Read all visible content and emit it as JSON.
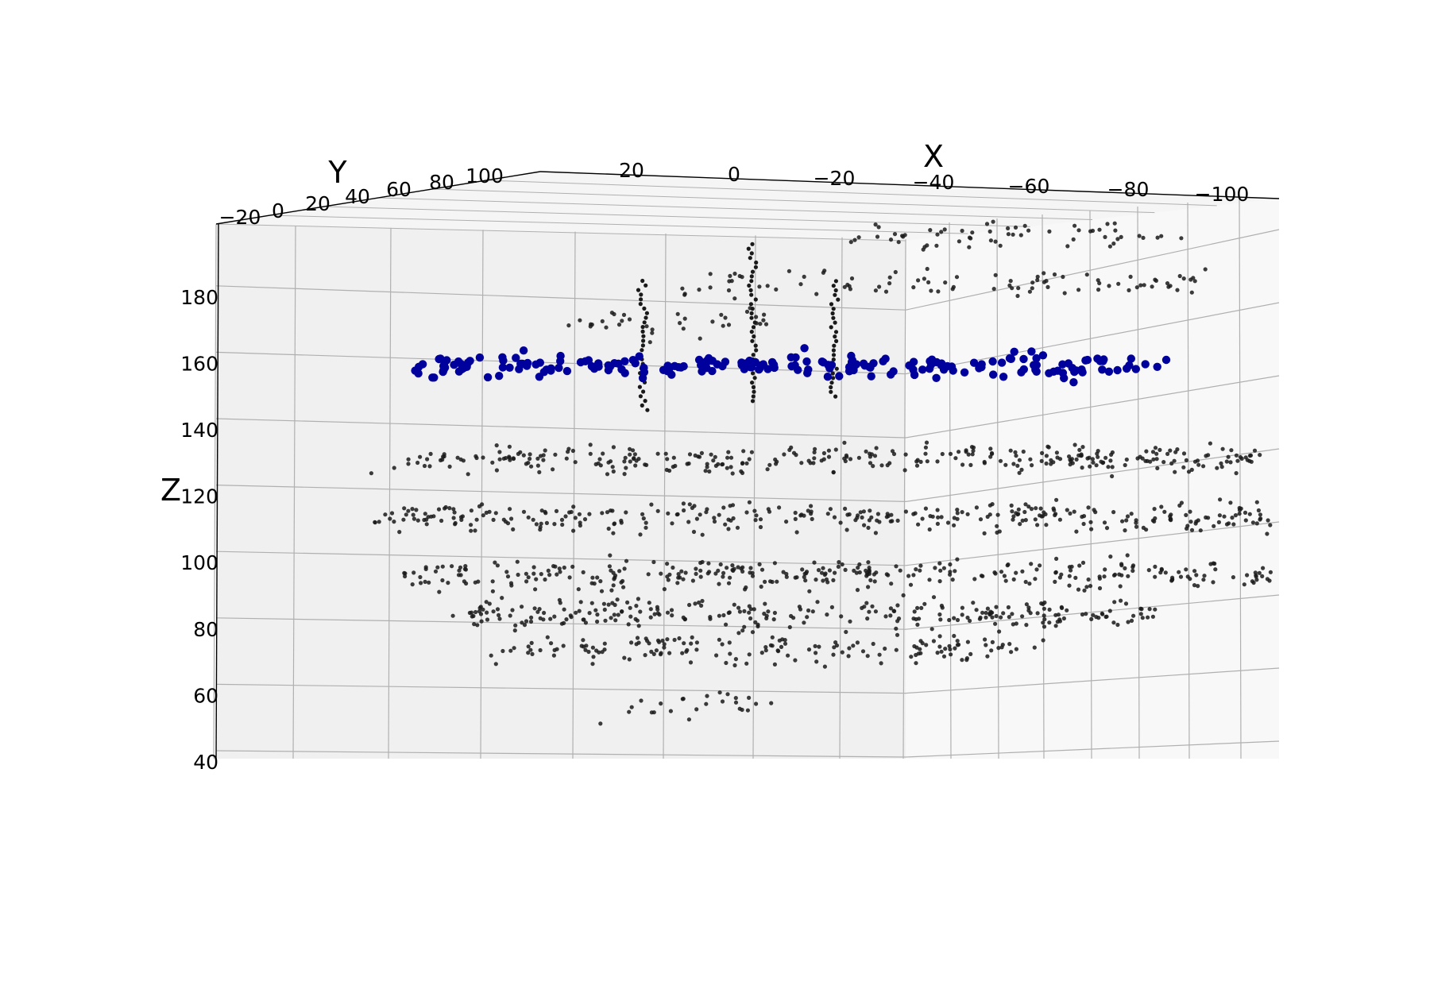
{
  "chart_data": {
    "type": "scatter",
    "projection": "3d",
    "xlabel": "X",
    "ylabel": "Y",
    "zlabel": "Z",
    "x_ticks": [
      "20",
      "0",
      "−20",
      "−40",
      "−60",
      "−80",
      "−100"
    ],
    "y_ticks": [
      "−20",
      "0",
      "20",
      "40",
      "60",
      "80",
      "100"
    ],
    "z_ticks": [
      "40",
      "60",
      "80",
      "100",
      "120",
      "140",
      "160",
      "180"
    ],
    "grid": true,
    "colors": {
      "background_point_color": "#1a1a1a",
      "highlight_point_color": "#00009c",
      "pane": "#f2f2f2",
      "grid": "#b0b0b0"
    },
    "series": [
      {
        "marker_size": "small",
        "bands": [
          {
            "z": 190,
            "x": [
              -30,
              -50
            ],
            "y": 80,
            "count": 8
          },
          {
            "z": 178,
            "x": [
              10,
              -60
            ],
            "y": 75,
            "count": 60
          },
          {
            "z": 165,
            "x": [
              45,
              -70
            ],
            "y": 70,
            "count": 90
          },
          {
            "z": 158,
            "x": [
              65,
              20
            ],
            "y": 55,
            "count": 35
          },
          {
            "z": 128,
            "x": [
              85,
              -110
            ],
            "y": 10,
            "count": 320
          },
          {
            "z": 112,
            "x": [
              85,
              -120
            ],
            "y": 5,
            "count": 330
          },
          {
            "z": 96,
            "x": [
              80,
              -130
            ],
            "y": 0,
            "count": 340
          },
          {
            "z": 84,
            "x": [
              65,
              -90
            ],
            "y": 0,
            "count": 260
          },
          {
            "z": 72,
            "x": [
              55,
              -60
            ],
            "y": 5,
            "count": 160
          },
          {
            "z": 55,
            "x": [
              30,
              0
            ],
            "y": 5,
            "count": 25
          }
        ],
        "stalks": [
          {
            "x": 48,
            "y": 50,
            "z": [
              132,
              172
            ]
          },
          {
            "x": 28,
            "y": 60,
            "z": [
              132,
              180
            ]
          },
          {
            "x": 12,
            "y": 65,
            "z": [
              132,
              168
            ]
          }
        ]
      },
      {
        "marker_size": "large",
        "band": {
          "z": 148,
          "x": [
            95,
            -70
          ],
          "y": 40,
          "count": 210
        }
      }
    ]
  }
}
